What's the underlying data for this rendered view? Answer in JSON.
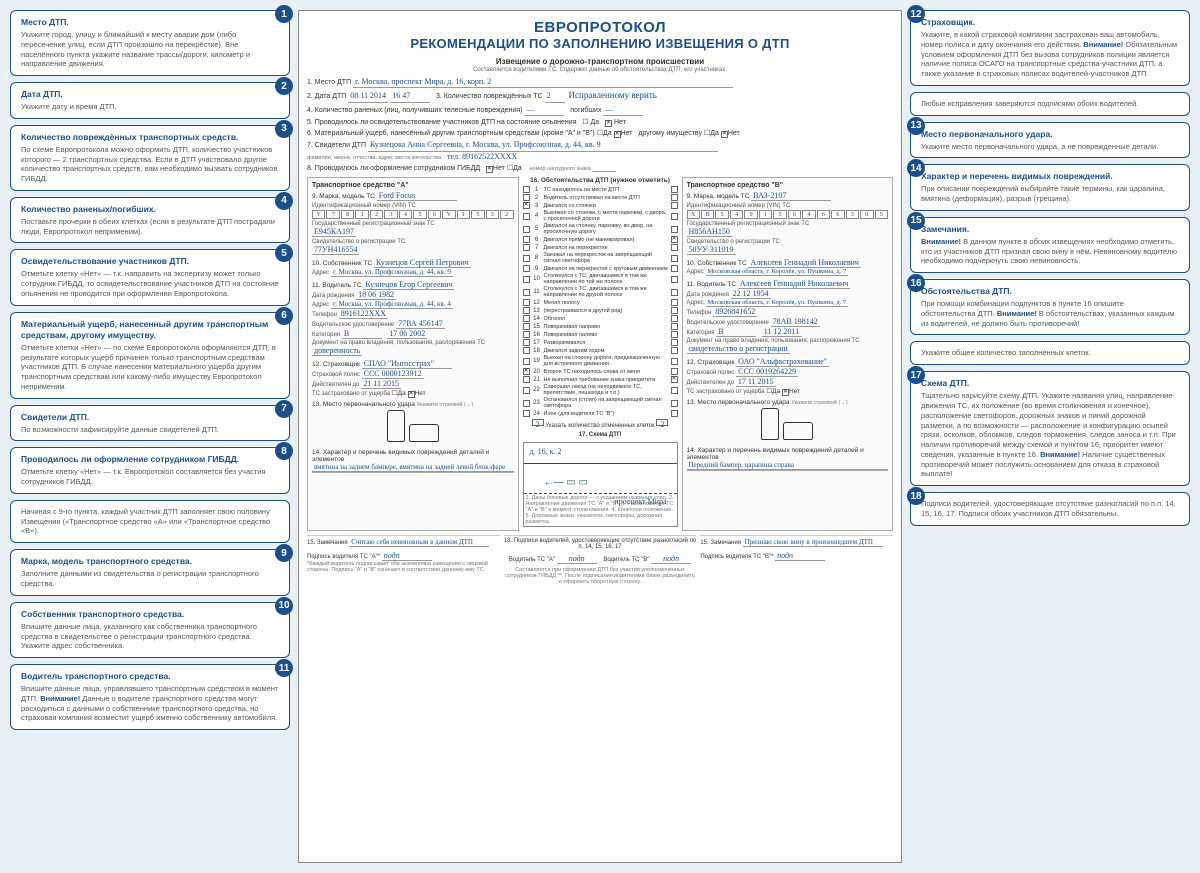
{
  "doc": {
    "title1": "ЕВРОПРОТОКОЛ",
    "title2": "РЕКОМЕНДАЦИИ ПО ЗАПОЛНЕНИЮ ИЗВЕЩЕНИЯ О ДТП",
    "form_header": "Извещение о дорожно-транспортном происшествии",
    "form_subheader": "Составляется водителями ТС. Содержит данные об обстоятельствах ДТП, его участниках."
  },
  "left": [
    {
      "n": "1",
      "title": "Место ДТП.",
      "body": "Укажите город, улицу и ближайший к месту аварии дом (либо пересечение улиц, если ДТП произошло на перекрёст­ке). Вне населённого пункта укажите название трассы/доро­ги, километр и направление движения."
    },
    {
      "n": "2",
      "title": "Дата ДТП.",
      "body": "Укажите дату и время ДТП."
    },
    {
      "n": "3",
      "title": "Количество повреждённых транспортных средств.",
      "body": "По схеме Европротокола можно оформить ДТП, количест­во участников которого — 2 транспортных средства. Если в ДТП участвовало другое количество транспортных средств, вам не­обходимо вызвать сотрудников ГИБДД."
    },
    {
      "n": "4",
      "title": "Количество раненых/погибших.",
      "body": "Поставьте прочерки в обеих клетках (если в результате ДТП пострадали люди, Европротокол неприменим)."
    },
    {
      "n": "5",
      "title": "Освидетельствование участников ДТП.",
      "body": "Отметьте клетку «Нет» — т.к. направить на экспертизу может только сотрудник ГИБДД, то освидетельствова­ние участников ДТП на состояние опьянения не проводится при оформлении Европротокола."
    },
    {
      "n": "6",
      "title": "Материальный ущерб, нанесенный другим транспорт­ным средствам, другому имуществу.",
      "body": "Отметьте клетки «Нет» — по схеме Европротокола офор­мляются ДТП, в результате которых ущерб причинен только транспортным средствам участников ДТП. В случае нанесе­ния материального ущерба другим транспортным средствам или какому-либо имуществу Европротокол неприменим."
    },
    {
      "n": "7",
      "title": "Свидетели ДТП.",
      "body": "По возможности зафиксируйте данные свидетелей ДТП."
    },
    {
      "n": "8",
      "title": "Проводилось ли оформление сотрудником ГИБДД.",
      "body": "Отметьте клетку «Нет» — т.к. Европротокол составляется без участия сотрудников ГИБДД."
    },
    {
      "n": "8a",
      "title": "",
      "body": "Начиная с 9-го пункта, каждый участник ДТП заполняет свою половину Извещения («Транспортное средство «А» или «Транспортное средство «В»)."
    },
    {
      "n": "9",
      "title": "Марка, модель транспортного средства.",
      "body": "Заполните данными из свидетельства о регистрации транспортного средства."
    },
    {
      "n": "10",
      "title": "Собственник транспортного средства.",
      "body": "Впишите данные лица, указанного как собственника транс­портного средства в свидетельстве о регистрации транспортно­го средства. Укажите адрес собственника."
    },
    {
      "n": "11",
      "title": "Водитель транспортного средства.",
      "body": "Впишите данные лица, управлявшего транспортным средством в момент ДТП. Внимание! Данные о водителе транспортного средства могут расходиться с данными о соб­ственнике транспортного средства, но страховая компания возместит ущерб именно собственнику автомобиля."
    }
  ],
  "right": [
    {
      "n": "12",
      "title": "Страховщик.",
      "body": "Укажите, в какой страховой компании застрахован ваш авто­мобиль, номер полиса и дату окончания его действия. Внимание! Обязательным условием оформления ДТП без вы­зова сотрудников полиции является наличие полиса ОСАГО на транспортные средства-участники ДТП, а также указание в страховых полисах водителей-участников ДТП."
    },
    {
      "n": "12a",
      "title": "",
      "body": "Любые исправления заверяются подписями обоих водителей."
    },
    {
      "n": "13",
      "title": "Место первоначального удара.",
      "body": "Укажите место первоначального удара, а не поврежденные детали."
    },
    {
      "n": "14",
      "title": "Характер и перечень видимых повреждений.",
      "body": "При описании повреждений выбирайте такие термины, как царапина, вмятина (деформация), разрыв (трещина)."
    },
    {
      "n": "15",
      "title": "Замечания.",
      "body": "Внимание! В данном пункте в обоих извещениях необхо­димо отметить, кто из участников ДТП признал свою вину в нём. Невиновному водителю необходимо подчеркнуть свою невиновность."
    },
    {
      "n": "16",
      "title": "Обстоятельства ДТП.",
      "body": "При помощи комбинации подпунктов в пункте 16 опишите обстоятельства ДТП. Внимание! В обстоятельствах, указан­ных каждым из водителей, не должно быть противоречий!"
    },
    {
      "n": "16a",
      "title": "",
      "body": "Укажите общее количество заполненных клеток."
    },
    {
      "n": "17",
      "title": "Схема ДТП.",
      "body": "Тщательно нарисуйте схему ДТП. Укажите названия улиц, направление движения ТС, их положение (во время столкнове­ния и конечное), расположение светофоров, дорожных знаков и линий дорожной разметки, а по возможности — расположе­ние и конфигурацию осыпей грязи, осколков, обломков, сле­дов торможения, следов заноса и т.п. При наличии противоре­чий между схемой и пунктом 16, приоритет имеют сведения, указанные в пункте 16. Внимание! Наличие существенных противоречий может послужить основанием для отказа в стра­ховой выплате!"
    },
    {
      "n": "18",
      "title": "",
      "body": "Подписи водителей, удостоверяющие отсутствие разногла­сий по п.п. 14, 15, 16, 17. Подписи обоих участников ДТП обязательны."
    }
  ],
  "form": {
    "p1_label": "1. Место ДТП",
    "p1_val": "г. Москва, проспект Мира, д. 16, корп. 2",
    "p2_label": "2. Дата ДТП",
    "p2_date": "08 11 2014",
    "p2_time": "16 47",
    "p3_label": "3. Количество повреждённых ТС",
    "p3_val": "2",
    "p3_note": "Исправленному верить",
    "p4_label": "4. Количество раненых (лиц, получивших телесные повреждения)",
    "p4_val": "—",
    "p4_label2": "погибших",
    "p4_val2": "—",
    "p5_label": "5. Проводилось ли освидетельствование участников ДТП на состояние опьянения",
    "p5_no": "Нет",
    "p6_label": "6. Материальный ущерб, нанесённый другим транспортным средствам (кроме \"А\" и \"В\")",
    "p6_no": "Нет",
    "p6_label2": "другому имуществу",
    "p6_no2": "Нет",
    "p7_label": "7. Свидетели ДТП",
    "p7_val": "Кузнецова Анна Сергеевна, г. Москва, ул. Профсоюзная, д. 44, кв. 9",
    "p7_tel": "тел. 89162522XXXX",
    "p8_label": "8. Проводилось ли оформление сотрудником ГИБДД",
    "p8_no": "Нет",
    "vehA": {
      "head": "Транспортное средство \"А\"",
      "p9": "9. Марка, модель ТС",
      "p9v": "Ford Focus",
      "vin_label": "Идентификационный номер (VIN) ТС",
      "vin": "Y78123456V15321",
      "reg_label": "Государственный регистрационный знак ТС",
      "reg": "Е945КА197",
      "sv_label": "Свидетельство о регистрации ТС",
      "sv": "77УН416554",
      "p10": "10. Собственник ТС",
      "p10v": "Кузнецов Сергей Петрович",
      "addr_label": "Адрес",
      "addr": "г. Москва, ул. Профсоюзная, д. 44, кв. 9",
      "p11": "11. Водитель ТС",
      "p11v": "Кузнецов Егор Сергеевич",
      "dob_label": "Дата рождения",
      "dob": "18 06 1982",
      "addr2": "г. Москва, ул. Профсоюзная, д. 44, кв. 4",
      "tel_label": "Телефон",
      "tel": "8916122XXX",
      "vu_label": "Водительское удостоверение",
      "vu": "77ВА 456147",
      "cat_label": "Категория",
      "cat": "B",
      "catdate": "17 06 2002",
      "doc_label": "Документ на право владения, пользования, распоряжения ТС",
      "doc": "доверенность",
      "p12": "12. Страховщик",
      "p12v": "СПАО \"Ингосстрах\"",
      "polis_label": "Страховой полис",
      "polis": "ССС 0000123912",
      "valid_label": "Действителен до",
      "valid": "21 11 2015",
      "dmg_label": "ТС застраховано от ущерба",
      "dmg": "Нет",
      "p13": "13. Место первоначального удара",
      "p13_hint": "Укажите стрелкой (→)",
      "p14": "14. Характер и перечень видимых повреждений деталей и элементов",
      "p14v": "вмятина на заднем бампере, вмятина на задней левой блок-фаре",
      "p15": "15. Замечания",
      "p15v": "Считаю себя невиновным в данном ДТП",
      "sig_label": "Подпись водителя ТС \"А\"*",
      "sig": "подпись"
    },
    "vehB": {
      "head": "Транспортное средство \"В\"",
      "p9": "9. Марка, модель ТС",
      "p9v": "ВАЗ-2107",
      "vin_label": "Идентификационный номер (VIN) ТС",
      "vin": "XВ54915646630578",
      "reg_label": "Государственный регистрационный знак ТС",
      "reg": "Н856АН150",
      "sv_label": "Свидетельство о регистрации ТС",
      "sv": "50УУ 311019",
      "p10": "10. Собственник ТС",
      "p10v": "Алексеев Геннадий Николаевич",
      "addr_label": "Адрес",
      "addr": "Московская область, г. Королёв, ул. Пушкина, д. 7",
      "p11": "11. Водитель ТС",
      "p11v": "Алексеев Геннадий Николаевич",
      "dob_label": "Дата рождения",
      "dob": "22 12 1954",
      "addr2": "Московская область, г. Королёв, ул. Пушкина, д. 7",
      "tel_label": "Телефон",
      "tel": "8926841652",
      "vu_label": "Водительское удостоверение",
      "vu": "78АВ 198142",
      "cat_label": "Категория",
      "cat": "B",
      "catdate": "11 12 2011",
      "doc_label": "Документ на право владения, пользования, распоряжения ТС",
      "doc": "свидетельство о регистрации",
      "p12": "12. Страховщик",
      "p12v": "ОАО \"Альфастрахование\"",
      "polis_label": "Страховой полис",
      "polis": "ССС 0019264229",
      "valid_label": "Действителен до",
      "valid": "17 11 2015",
      "dmg_label": "ТС застраховано от ущерба",
      "dmg": "Нет",
      "p13": "13. Место первоначального удара",
      "p13_hint": "Укажите стрелкой (→)",
      "p14": "14. Характер и перечень видимых повреждений деталей и элементов",
      "p14v": "Передний бампер, царапина справа",
      "p15": "15. Замечания",
      "p15v": "Признаю свою вину в произошедшем ДТП",
      "sig_label": "Подпись водителя ТС \"В\"*",
      "sig": "подпись"
    },
    "p16_head": "16. Обстоятельства ДТП (нужное отметить)",
    "p16_items": [
      "ТС находилось на месте ДТП",
      "Водитель отсутствовал на месте ДТП",
      "Двигался со стоянки",
      "Выезжал со стоянки, с места парковки, с двора, с проселочной дороги",
      "Двигался на стоянку, парковку, во двор, на проселочную дорогу",
      "Двигался прямо (не маневрировал)",
      "Двигался на перекрестке",
      "Заезжал на перекресток на запрещающий сигнал светофора",
      "Двигался на перекрестке с круговым движением",
      "Столкнулся с ТС, двигавшимся в том же направлении по той же полосе",
      "Столкнулся с ТС, двигавшимся в том же направлении по другой полосе",
      "Менял полосу",
      "(перестраивался в другой ряд)",
      "Обгонял",
      "Поворачивал направо",
      "Поворачивал налево",
      "Разворачивался",
      "Двигался задним ходом",
      "Выехал на сторону дороги, предназначенную для встречного движения",
      "Второе ТС находилось слева от меня",
      "Не выполнил требование знака приоритета",
      "Совершил наезд (на неподвижное ТС, препятствие, пешехода и т.п.)",
      "Остановился (стоял) на запрещающий сигнал светофора",
      "Иное (для водителя ТС \"В\")"
    ],
    "p16_totalA": "2",
    "p16_totalB": "2",
    "p16_total_label": "Указать количество отмеченных клеток",
    "p17": "17. Схема ДТП",
    "p17_street": "проспект Мира",
    "p17_house": "д. 16, к. 2",
    "p18": "18. Подписи водителей, удостоверяющие отсутствие разногласий по п. 14, 15, 16, 17",
    "p18_a": "Водитель ТС \"А\"",
    "p18_b": "Водитель ТС \"В\""
  },
  "colors": {
    "brand": "#1a4f8b",
    "bg": "#e8f0f5",
    "ink": "#1a4f8b"
  }
}
